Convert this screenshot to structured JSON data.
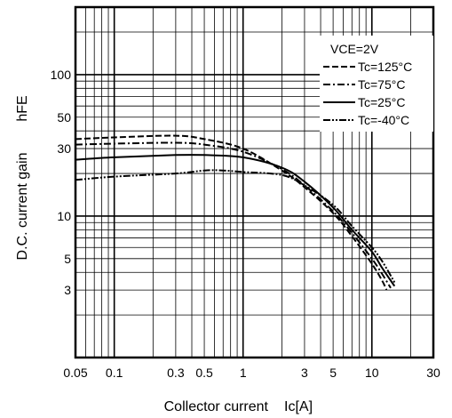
{
  "chart_data": {
    "type": "line",
    "title": "",
    "xlabel": "Collector current",
    "xlabel_symbol": "Ic[A]",
    "ylabel": "D.C. current gain",
    "ylabel_symbol": "hFE",
    "x_scale": "log",
    "y_scale": "log",
    "xlim": [
      0.05,
      30
    ],
    "ylim": [
      1,
      300
    ],
    "grid": true,
    "legend_placement": "top-right",
    "legend_title": "VCE=2V",
    "x_ticks": [
      {
        "value": 0.05,
        "label": "0.05"
      },
      {
        "value": 0.1,
        "label": "0.1"
      },
      {
        "value": 0.3,
        "label": "0.3"
      },
      {
        "value": 0.5,
        "label": "0.5"
      },
      {
        "value": 1,
        "label": "1"
      },
      {
        "value": 3,
        "label": "3"
      },
      {
        "value": 5,
        "label": "5"
      },
      {
        "value": 10,
        "label": "10"
      },
      {
        "value": 30,
        "label": "30"
      }
    ],
    "y_ticks": [
      {
        "value": 3,
        "label": "3"
      },
      {
        "value": 5,
        "label": "5"
      },
      {
        "value": 10,
        "label": "10"
      },
      {
        "value": 30,
        "label": "30"
      },
      {
        "value": 50,
        "label": "50"
      },
      {
        "value": 100,
        "label": "100"
      }
    ],
    "series": [
      {
        "name": "Tc=125°C",
        "dash": "dashed",
        "points": [
          [
            0.05,
            35
          ],
          [
            0.1,
            36
          ],
          [
            0.3,
            37
          ],
          [
            0.5,
            35
          ],
          [
            1,
            30
          ],
          [
            2,
            21
          ],
          [
            3,
            16
          ],
          [
            5,
            10.5
          ],
          [
            7,
            7.2
          ],
          [
            10,
            4.6
          ],
          [
            12,
            3.5
          ],
          [
            13,
            3.0
          ]
        ]
      },
      {
        "name": "Tc=75°C",
        "dash": "dash-dot",
        "points": [
          [
            0.05,
            32
          ],
          [
            0.1,
            32.5
          ],
          [
            0.3,
            33
          ],
          [
            0.5,
            32
          ],
          [
            1,
            28.5
          ],
          [
            2,
            21.5
          ],
          [
            3,
            16.5
          ],
          [
            5,
            10.8
          ],
          [
            7,
            7.6
          ],
          [
            10,
            5.0
          ],
          [
            12,
            3.9
          ],
          [
            14,
            3.1
          ]
        ]
      },
      {
        "name": "Tc=25°C",
        "dash": "solid",
        "points": [
          [
            0.05,
            25
          ],
          [
            0.1,
            26
          ],
          [
            0.3,
            27
          ],
          [
            0.5,
            27
          ],
          [
            1,
            26
          ],
          [
            2,
            22
          ],
          [
            3,
            17.5
          ],
          [
            5,
            11.5
          ],
          [
            7,
            8.0
          ],
          [
            10,
            5.6
          ],
          [
            12,
            4.3
          ],
          [
            15,
            3.2
          ]
        ]
      },
      {
        "name": "Tc=-40°C",
        "dash": "dash-dot-dot",
        "points": [
          [
            0.05,
            18
          ],
          [
            0.1,
            19
          ],
          [
            0.3,
            20
          ],
          [
            0.5,
            21
          ],
          [
            0.7,
            21
          ],
          [
            1,
            20.5
          ],
          [
            2,
            19.5
          ],
          [
            3,
            16.5
          ],
          [
            5,
            12
          ],
          [
            7,
            8.5
          ],
          [
            10,
            6.0
          ],
          [
            12,
            4.8
          ],
          [
            15,
            3.4
          ]
        ]
      }
    ]
  }
}
